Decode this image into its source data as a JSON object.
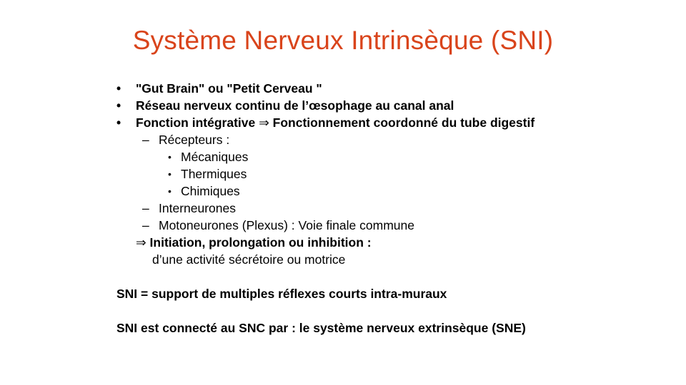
{
  "slide": {
    "title": "Système Nerveux Intrinsèque (SNI)",
    "bullets": [
      "\"Gut Brain\" ou \"Petit Cerveau \"",
      "Réseau nerveux continu de l’œsophage au canal anal",
      "Fonction intégrative",
      "Fonctionnement coordonné du tube digestif"
    ],
    "bullet_glyph": "•",
    "dash_glyph": "–",
    "arrow_glyph": "⇒",
    "sub": {
      "recepteurs": "Récepteurs :",
      "types": [
        "Mécaniques",
        "Thermiques",
        "Chimiques"
      ],
      "interneurones": "Interneurones",
      "motoneurones": "Motoneurones (Plexus) : Voie finale commune"
    },
    "initiation": "Initiation, prolongation ou inhibition :",
    "activite": "d’une activité sécrétoire ou motrice",
    "sni_support": "SNI = support de multiples réflexes courts intra-muraux",
    "sni_connecte": "SNI est connecté au SNC par : le système nerveux extrinsèque (SNE)"
  }
}
